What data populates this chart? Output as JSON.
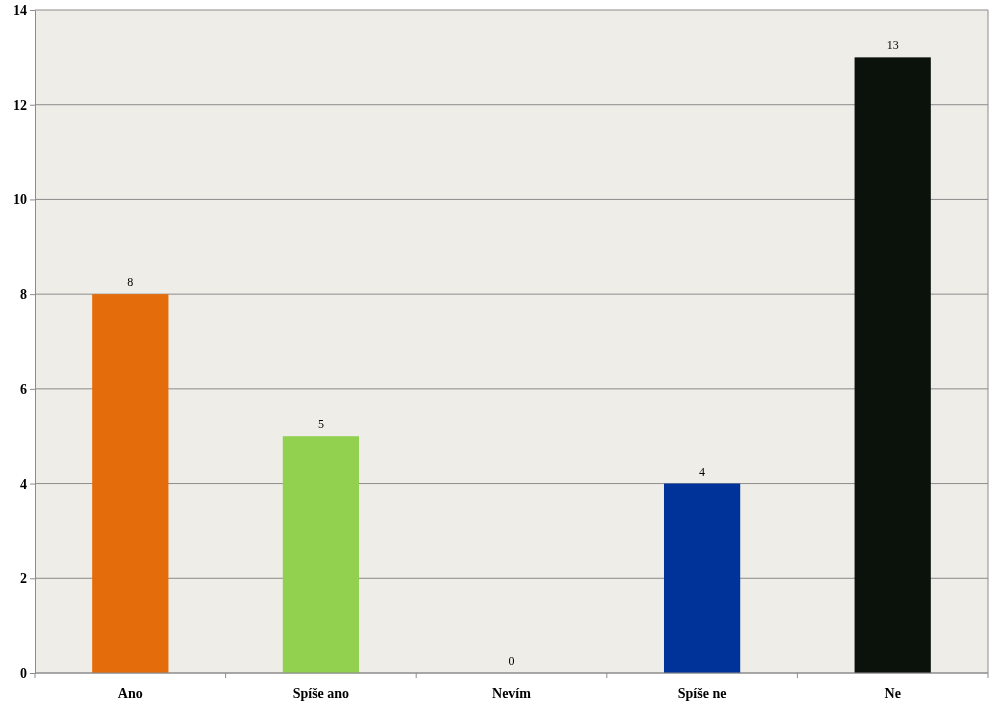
{
  "chart_data": {
    "type": "bar",
    "categories": [
      "Ano",
      "Spíše ano",
      "Nevím",
      "Spíše ne",
      "Ne"
    ],
    "values": [
      8,
      5,
      0,
      4,
      13
    ],
    "colors": [
      "#e46c0a",
      "#92d050",
      "#808080",
      "#003399",
      "#0a120b"
    ],
    "ylim": [
      0,
      14
    ],
    "yticks": [
      0,
      2,
      4,
      6,
      8,
      10,
      12,
      14
    ],
    "grid": "y",
    "data_labels": true
  }
}
